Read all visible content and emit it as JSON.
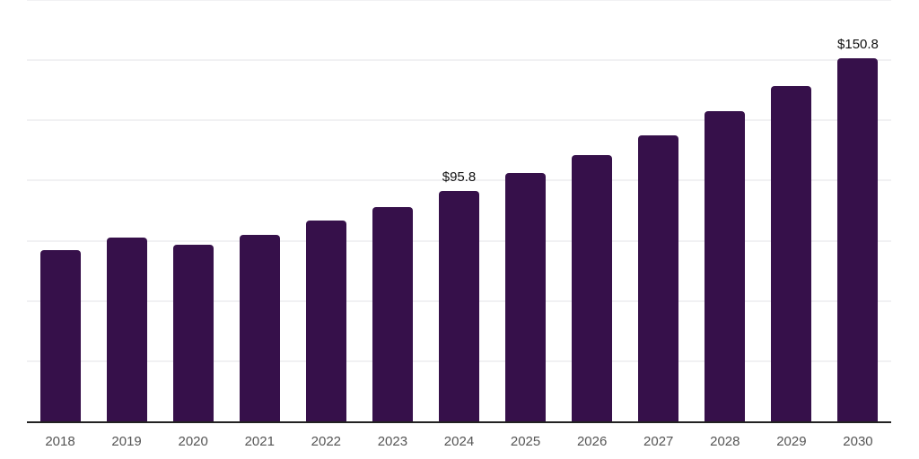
{
  "chart_data": {
    "type": "bar",
    "title": "",
    "xlabel": "",
    "ylabel": "",
    "categories": [
      "2018",
      "2019",
      "2020",
      "2021",
      "2022",
      "2023",
      "2024",
      "2025",
      "2026",
      "2027",
      "2028",
      "2029",
      "2030"
    ],
    "values": [
      71.0,
      76.5,
      73.4,
      77.5,
      83.5,
      89.0,
      95.8,
      103.3,
      110.7,
      118.9,
      128.9,
      139.4,
      150.8
    ],
    "point_labels": [
      "",
      "",
      "",
      "",
      "",
      "",
      "$95.8",
      "",
      "",
      "",
      "",
      "",
      "$150.8"
    ],
    "ylim": [
      0,
      175
    ],
    "gridline_step": 25,
    "grid": true,
    "legend": "none",
    "y_tick_labels_visible": false,
    "bar_color": "#36104A",
    "axis_color": "#222222",
    "gridline_color": "#f1f1f3",
    "tick_label_color": "#555555",
    "data_label_color": "#111111",
    "background_color": "#ffffff"
  }
}
